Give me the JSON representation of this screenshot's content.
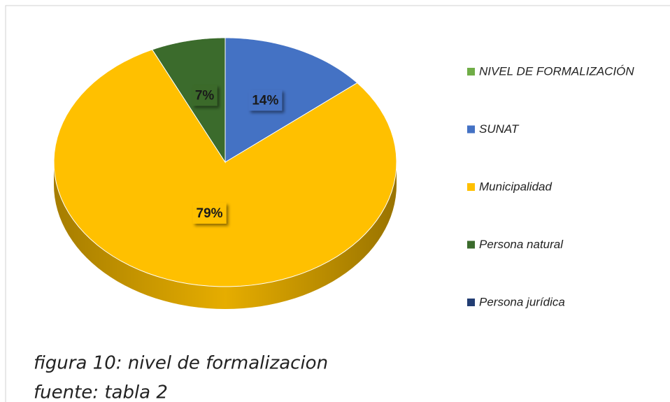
{
  "chart_data": {
    "type": "pie",
    "categories": [
      "NIVEL DE FORMALIZACIÓN",
      "SUNAT",
      "Municipalidad",
      "Persona natural",
      "Persona jurídica"
    ],
    "values": [
      null,
      14,
      79,
      7,
      null
    ],
    "value_labels": [
      null,
      "14%",
      "79%",
      "7%",
      null
    ],
    "colors": [
      "#70ad47",
      "#4472c4",
      "#ffc000",
      "#3b6b2c",
      "#223d73"
    ],
    "legend": "right",
    "caption": [
      "figura 10: nivel de formalizacion",
      "fuente: tabla 2"
    ]
  }
}
